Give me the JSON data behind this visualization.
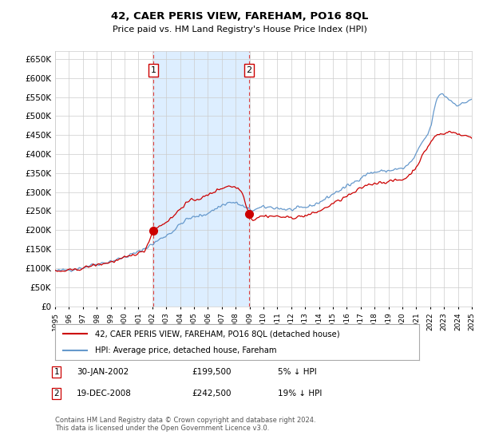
{
  "title": "42, CAER PERIS VIEW, FAREHAM, PO16 8QL",
  "subtitle": "Price paid vs. HM Land Registry's House Price Index (HPI)",
  "legend_line1": "42, CAER PERIS VIEW, FAREHAM, PO16 8QL (detached house)",
  "legend_line2": "HPI: Average price, detached house, Fareham",
  "annotation1_date": "30-JAN-2002",
  "annotation1_price": "£199,500",
  "annotation1_hpi": "5% ↓ HPI",
  "annotation2_date": "19-DEC-2008",
  "annotation2_price": "£242,500",
  "annotation2_hpi": "19% ↓ HPI",
  "footnote": "Contains HM Land Registry data © Crown copyright and database right 2024.\nThis data is licensed under the Open Government Licence v3.0.",
  "property_color": "#cc0000",
  "hpi_color": "#6699cc",
  "background_color": "#ffffff",
  "grid_color": "#cccccc",
  "highlight_color": "#ddeeff",
  "sale1_x": 2002.08,
  "sale1_y": 199500,
  "sale2_x": 2008.97,
  "sale2_y": 242500,
  "xmin": 1995,
  "xmax": 2025,
  "ylim": [
    0,
    670000
  ],
  "yticks": [
    0,
    50000,
    100000,
    150000,
    200000,
    250000,
    300000,
    350000,
    400000,
    450000,
    500000,
    550000,
    600000,
    650000
  ]
}
